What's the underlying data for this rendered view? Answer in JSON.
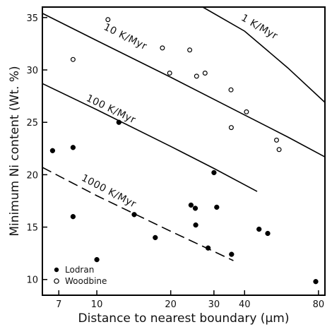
{
  "chart_data": {
    "type": "scatter",
    "title": "",
    "xlabel": "Distance to nearest boundary (μm)",
    "ylabel": "Minimum Ni content (Wt. %)",
    "xscale": "log",
    "xlim": [
      6,
      85
    ],
    "ylim": [
      8.5,
      36
    ],
    "xticks": [
      7,
      10,
      20,
      30,
      40,
      80
    ],
    "xtick_labels": [
      "7",
      "10",
      "20",
      "30",
      "40",
      "80"
    ],
    "yticks": [
      10,
      15,
      20,
      25,
      30,
      35
    ],
    "ytick_labels": [
      "10",
      "15",
      "20",
      "25",
      "30",
      "35"
    ],
    "grid": false,
    "legend": "bottom-left",
    "series": [
      {
        "name": "Lodran",
        "marker": "filled-circle",
        "color": "#000000",
        "points": [
          [
            6.6,
            22.3
          ],
          [
            8.0,
            22.6
          ],
          [
            8.0,
            16.0
          ],
          [
            10.0,
            11.9
          ],
          [
            12.3,
            25.0
          ],
          [
            14.2,
            16.2
          ],
          [
            17.3,
            14.0
          ],
          [
            24.2,
            17.1
          ],
          [
            25.2,
            16.8
          ],
          [
            25.3,
            15.2
          ],
          [
            28.4,
            13.0
          ],
          [
            30.0,
            20.2
          ],
          [
            30.8,
            16.9
          ],
          [
            35.4,
            12.4
          ],
          [
            45.8,
            14.8
          ],
          [
            49.7,
            14.4
          ],
          [
            78.0,
            9.8
          ]
        ]
      },
      {
        "name": "Woodbine",
        "marker": "open-circle",
        "color": "#000000",
        "points": [
          [
            8.0,
            31.0
          ],
          [
            11.1,
            34.8
          ],
          [
            18.5,
            32.1
          ],
          [
            19.8,
            29.7
          ],
          [
            23.9,
            31.9
          ],
          [
            25.5,
            29.4
          ],
          [
            27.6,
            29.7
          ],
          [
            35.2,
            28.1
          ],
          [
            35.3,
            24.5
          ],
          [
            40.7,
            26.0
          ],
          [
            54.0,
            23.3
          ],
          [
            55.3,
            22.4
          ]
        ]
      }
    ],
    "curves": [
      {
        "label": "1 K/Myr",
        "style": "solid",
        "points": [
          [
            27.0,
            36.0
          ],
          [
            40.0,
            33.7
          ],
          [
            60.0,
            30.2
          ],
          [
            85.0,
            26.9
          ]
        ],
        "label_at": [
          38.5,
          34.8
        ]
      },
      {
        "label": "10 K/Myr",
        "style": "solid",
        "points": [
          [
            6.0,
            35.4
          ],
          [
            10.0,
            32.8
          ],
          [
            20.0,
            29.3
          ],
          [
            40.0,
            25.7
          ],
          [
            60.0,
            23.6
          ],
          [
            85.0,
            21.7
          ]
        ],
        "label_at": [
          10.6,
          33.9
        ]
      },
      {
        "label": "100 K/Myr",
        "style": "solid",
        "points": [
          [
            6.0,
            28.7
          ],
          [
            10.0,
            26.2
          ],
          [
            20.0,
            22.7
          ],
          [
            30.0,
            20.6
          ],
          [
            45.0,
            18.4
          ]
        ],
        "label_at": [
          9.0,
          27.1
        ]
      },
      {
        "label": "1000 K/Myr",
        "style": "dashed",
        "points": [
          [
            6.0,
            20.7
          ],
          [
            10.0,
            18.0
          ],
          [
            20.0,
            14.6
          ],
          [
            36.0,
            11.8
          ]
        ],
        "label_at": [
          8.6,
          19.5
        ]
      }
    ]
  }
}
